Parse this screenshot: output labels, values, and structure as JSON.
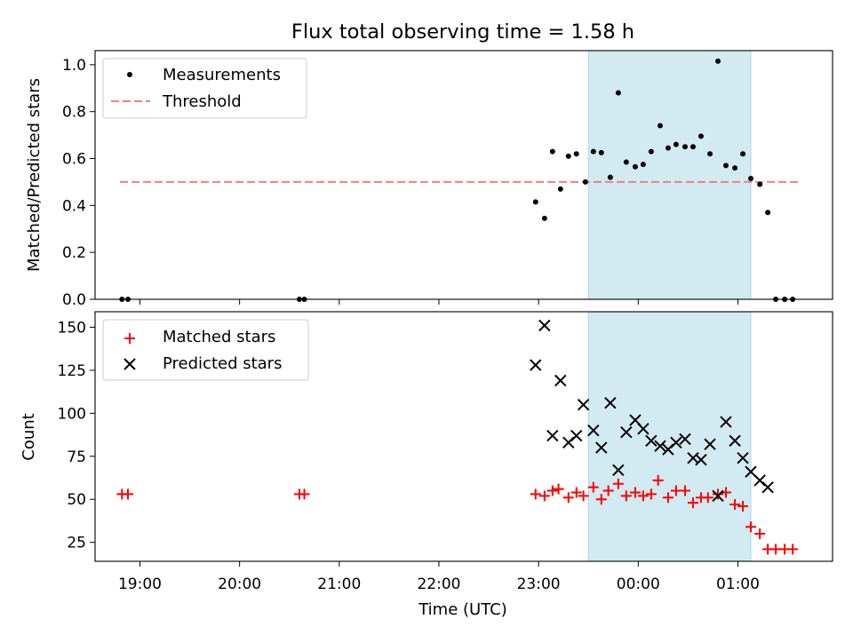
{
  "title": "Flux total observing time = 1.58 h",
  "chart_data": [
    {
      "type": "scatter",
      "ylabel": "Matched/Predicted stars",
      "xlim": [
        18.55,
        25.95
      ],
      "ylim": [
        0,
        1.06
      ],
      "yticks": [
        0.0,
        0.2,
        0.4,
        0.6,
        0.8,
        1.0
      ],
      "ytick_labels": [
        "0.0",
        "0.2",
        "0.4",
        "0.6",
        "0.8",
        "1.0"
      ],
      "shaded_span": [
        23.5,
        25.13
      ],
      "shaded_color": "#add8e6",
      "legend": {
        "position": "top-left",
        "entries": [
          "Measurements",
          "Threshold"
        ]
      },
      "threshold": {
        "name": "Threshold",
        "x_range": [
          18.8,
          25.62
        ],
        "y": 0.5,
        "color": "#f08080"
      },
      "series": [
        {
          "name": "Measurements",
          "color": "#000000",
          "x": [
            18.82,
            18.88,
            20.6,
            20.65,
            22.97,
            23.06,
            23.14,
            23.22,
            23.3,
            23.38,
            23.47,
            23.55,
            23.63,
            23.72,
            23.8,
            23.88,
            23.97,
            24.05,
            24.13,
            24.22,
            24.3,
            24.38,
            24.47,
            24.55,
            24.63,
            24.72,
            24.8,
            24.88,
            24.97,
            25.05,
            25.13,
            25.22,
            25.3,
            25.38,
            25.47,
            25.55
          ],
          "y": [
            0.0,
            0.0,
            0.0,
            0.0,
            0.415,
            0.345,
            0.63,
            0.47,
            0.61,
            0.62,
            0.5,
            0.63,
            0.625,
            0.52,
            0.88,
            0.585,
            0.565,
            0.575,
            0.63,
            0.74,
            0.645,
            0.66,
            0.65,
            0.65,
            0.695,
            0.62,
            1.015,
            0.57,
            0.56,
            0.62,
            0.515,
            0.49,
            0.37,
            0.0,
            0.0,
            0.0
          ]
        }
      ]
    },
    {
      "type": "scatter",
      "ylabel": "Count",
      "xlabel": "Time (UTC)",
      "xlim": [
        18.55,
        25.95
      ],
      "ylim": [
        14,
        159
      ],
      "yticks": [
        25,
        50,
        75,
        100,
        125,
        150
      ],
      "ytick_labels": [
        "25",
        "50",
        "75",
        "100",
        "125",
        "150"
      ],
      "xticks": [
        19,
        20,
        21,
        22,
        23,
        24,
        25
      ],
      "xtick_labels": [
        "19:00",
        "20:00",
        "21:00",
        "22:00",
        "23:00",
        "00:00",
        "01:00"
      ],
      "shaded_span": [
        23.5,
        25.13
      ],
      "shaded_color": "#add8e6",
      "legend": {
        "position": "top-left",
        "entries": [
          "Matched stars",
          "Predicted stars"
        ]
      },
      "series": [
        {
          "name": "Matched stars",
          "marker": "plus",
          "color": "#ff0000",
          "x": [
            18.82,
            18.88,
            20.6,
            20.65,
            22.97,
            23.06,
            23.14,
            23.2,
            23.3,
            23.38,
            23.45,
            23.55,
            23.63,
            23.7,
            23.8,
            23.88,
            23.97,
            24.05,
            24.13,
            24.2,
            24.3,
            24.38,
            24.47,
            24.55,
            24.63,
            24.7,
            24.8,
            24.88,
            24.97,
            25.05,
            25.13,
            25.22,
            25.3,
            25.38,
            25.47,
            25.55
          ],
          "y": [
            53,
            53,
            53,
            53,
            53,
            52,
            55,
            56,
            51,
            54,
            52,
            57,
            50,
            55,
            59,
            52,
            54,
            52,
            53,
            61,
            51,
            55,
            55,
            48,
            51,
            51,
            53,
            54,
            47,
            46,
            34,
            30,
            21,
            21,
            21,
            21
          ]
        },
        {
          "name": "Predicted stars",
          "marker": "x",
          "color": "#000000",
          "x": [
            22.97,
            23.06,
            23.14,
            23.22,
            23.3,
            23.38,
            23.45,
            23.55,
            23.63,
            23.72,
            23.8,
            23.88,
            23.97,
            24.05,
            24.13,
            24.22,
            24.3,
            24.38,
            24.47,
            24.55,
            24.63,
            24.72,
            24.8,
            24.88,
            24.97,
            25.05,
            25.13,
            25.22,
            25.3
          ],
          "y": [
            128,
            151,
            87,
            119,
            83,
            87,
            105,
            90,
            80,
            106,
            67,
            89,
            96,
            91,
            84,
            81,
            79,
            83,
            85,
            74,
            73,
            82,
            52,
            95,
            84,
            74,
            66,
            61,
            57
          ]
        }
      ]
    }
  ]
}
